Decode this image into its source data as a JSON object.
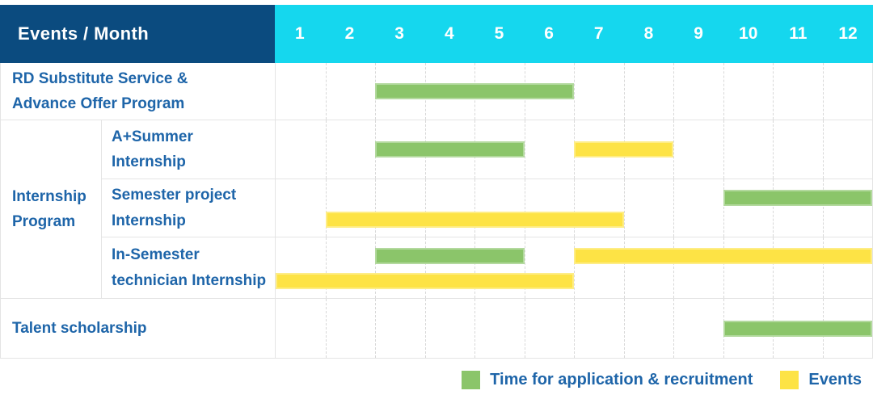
{
  "header": {
    "label": "Events / Month",
    "months": [
      "1",
      "2",
      "3",
      "4",
      "5",
      "6",
      "7",
      "8",
      "9",
      "10",
      "11",
      "12"
    ]
  },
  "colors": {
    "header_navy": "#0b4b7f",
    "header_cyan": "#15d7ee",
    "label_text_blue": "#1e65a9",
    "grid_line": "#e4e4e4",
    "month_gridline": "#d8d8d8",
    "bar_green": "#8bc56a",
    "bar_yellow": "#fde345"
  },
  "legend": [
    {
      "series": "Time for application & recruitment",
      "color": "#8bc56a",
      "label": "Time for application & recruitment"
    },
    {
      "series": "Events",
      "color": "#fde345",
      "label": "Events"
    }
  ],
  "chart_data": {
    "type": "bar",
    "subtype": "gantt",
    "title": "Events / Month",
    "xlabel": "Month",
    "x_ticks": [
      1,
      2,
      3,
      4,
      5,
      6,
      7,
      8,
      9,
      10,
      11,
      12
    ],
    "x_range": [
      1,
      12
    ],
    "grid": true,
    "legend_position": "bottom-right",
    "series_colors": {
      "Time for application & recruitment": "#8bc56a",
      "Events": "#fde345"
    },
    "rows": [
      {
        "group": "",
        "label": "RD Substitute Service & Advance Offer Program",
        "bars": [
          {
            "series": "Time for application & recruitment",
            "start_month": 3,
            "end_month": 6
          }
        ]
      },
      {
        "group": "Internship Program",
        "label": "A+Summer Internship",
        "bars": [
          {
            "series": "Time for application & recruitment",
            "start_month": 3,
            "end_month": 5
          },
          {
            "series": "Events",
            "start_month": 7,
            "end_month": 8
          }
        ]
      },
      {
        "group": "Internship Program",
        "label": "Semester project Internship",
        "bars": [
          {
            "series": "Time for application & recruitment",
            "start_month": 10,
            "end_month": 12
          },
          {
            "series": "Events",
            "start_month": 2,
            "end_month": 7
          }
        ]
      },
      {
        "group": "Internship Program",
        "label": "In-Semester technician Internship",
        "bars": [
          {
            "series": "Time for application & recruitment",
            "start_month": 3,
            "end_month": 5
          },
          {
            "series": "Events",
            "start_month": 7,
            "end_month": 12
          },
          {
            "series": "Events",
            "start_month": 1,
            "end_month": 6
          }
        ]
      },
      {
        "group": "",
        "label": "Talent scholarship",
        "bars": [
          {
            "series": "Time for application & recruitment",
            "start_month": 10,
            "end_month": 12
          }
        ]
      }
    ]
  }
}
